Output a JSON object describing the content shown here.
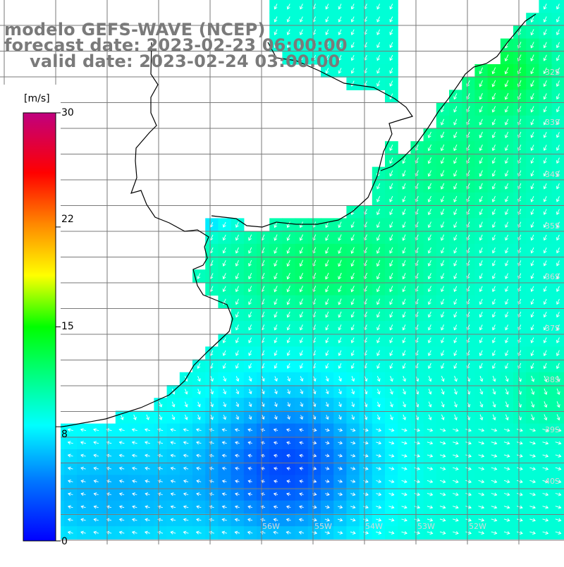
{
  "title": {
    "model": "modelo GEFS-WAVE (NCEP)",
    "forecast": "forecast date: 2023-02-23 06:00:00",
    "valid": "valid date: 2023-02-24 03:00:00"
  },
  "colorbar": {
    "unit": "[m/s]",
    "min": 0,
    "max": 30,
    "ticks": [
      "30",
      "22",
      "15",
      "8",
      "0"
    ],
    "tick_values": [
      30,
      22,
      15,
      8,
      0
    ],
    "colors": [
      "#0000ff",
      "#00aaff",
      "#00ffff",
      "#00ff00",
      "#ffff00",
      "#ff8800",
      "#ff0000",
      "#c0007f"
    ]
  },
  "map": {
    "latitude_labels": [
      "32S",
      "33S",
      "34S",
      "35S",
      "36S",
      "37S",
      "38S",
      "39S",
      "40S"
    ],
    "longitude_labels": [
      "56W",
      "55W",
      "54W",
      "53W",
      "52W"
    ],
    "land_color": "#ffffff",
    "grid_color": "#808080",
    "arrow_color": "#ffffff"
  }
}
